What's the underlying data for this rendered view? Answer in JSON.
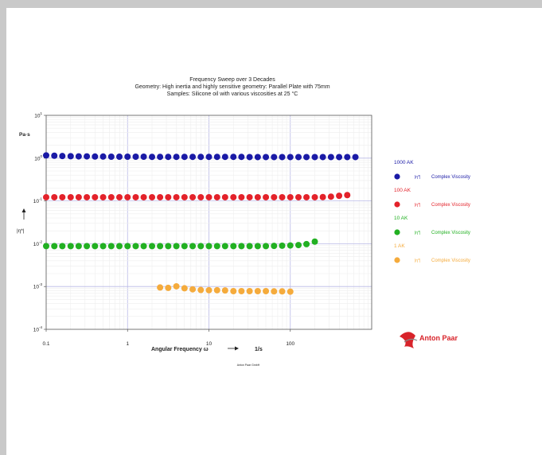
{
  "chart_data": {
    "type": "scatter",
    "title": "Frequency Sweep over 3 Decades",
    "subtitle_lines": [
      "Geometry: High inertia and highly sensitive geometry: Parallel Plate with 75mm",
      "Samples: Silicone oil with various viscosities at 25 °C"
    ],
    "xlabel": "Angular Frequency ω",
    "x_unit": "1/s",
    "ylabel": "|η*|",
    "y_unit": "Pa·s",
    "xscale": "log",
    "yscale": "log",
    "xlim": [
      0.1,
      1000
    ],
    "ylim": [
      0.0001,
      10
    ],
    "x_ticks": [
      "0.1",
      "1",
      "10",
      "100"
    ],
    "y_ticks": [
      {
        "base": "10",
        "exp": "1",
        "value": 10
      },
      {
        "base": "10",
        "exp": "0",
        "value": 1
      },
      {
        "base": "10",
        "exp": "-1",
        "value": 0.1
      },
      {
        "base": "10",
        "exp": "-2",
        "value": 0.01
      },
      {
        "base": "10",
        "exp": "-3",
        "value": 0.001
      },
      {
        "base": "10",
        "exp": "-4",
        "value": 0.0001
      }
    ],
    "grid": true,
    "legend_position": "right",
    "series": [
      {
        "group": "1000 AK",
        "name": "Complex Viscosity",
        "symbol": "|η*|",
        "color": "#1a1aa6",
        "points": [
          [
            0.1,
            1.16
          ],
          [
            0.126,
            1.14
          ],
          [
            0.158,
            1.12
          ],
          [
            0.2,
            1.11
          ],
          [
            0.251,
            1.1
          ],
          [
            0.316,
            1.1
          ],
          [
            0.398,
            1.09
          ],
          [
            0.501,
            1.09
          ],
          [
            0.631,
            1.08
          ],
          [
            0.794,
            1.08
          ],
          [
            1,
            1.08
          ],
          [
            1.26,
            1.08
          ],
          [
            1.58,
            1.08
          ],
          [
            2,
            1.07
          ],
          [
            2.51,
            1.07
          ],
          [
            3.16,
            1.07
          ],
          [
            3.98,
            1.07
          ],
          [
            5.01,
            1.07
          ],
          [
            6.31,
            1.07
          ],
          [
            7.94,
            1.07
          ],
          [
            10,
            1.07
          ],
          [
            12.6,
            1.07
          ],
          [
            15.8,
            1.07
          ],
          [
            20,
            1.07
          ],
          [
            25.1,
            1.07
          ],
          [
            31.6,
            1.06
          ],
          [
            39.8,
            1.06
          ],
          [
            50.1,
            1.06
          ],
          [
            63.1,
            1.06
          ],
          [
            79.4,
            1.06
          ],
          [
            100,
            1.06
          ],
          [
            126,
            1.06
          ],
          [
            158,
            1.06
          ],
          [
            200,
            1.06
          ],
          [
            251,
            1.06
          ],
          [
            316,
            1.06
          ],
          [
            398,
            1.06
          ],
          [
            501,
            1.06
          ],
          [
            631,
            1.06
          ]
        ]
      },
      {
        "group": "100 AK",
        "name": "Complex Viscosity",
        "symbol": "|η*|",
        "color": "#e3222a",
        "points": [
          [
            0.1,
            0.122
          ],
          [
            0.126,
            0.122
          ],
          [
            0.158,
            0.122
          ],
          [
            0.2,
            0.122
          ],
          [
            0.251,
            0.122
          ],
          [
            0.316,
            0.122
          ],
          [
            0.398,
            0.122
          ],
          [
            0.501,
            0.122
          ],
          [
            0.631,
            0.122
          ],
          [
            0.794,
            0.122
          ],
          [
            1,
            0.122
          ],
          [
            1.26,
            0.122
          ],
          [
            1.58,
            0.122
          ],
          [
            2,
            0.122
          ],
          [
            2.51,
            0.122
          ],
          [
            3.16,
            0.122
          ],
          [
            3.98,
            0.122
          ],
          [
            5.01,
            0.122
          ],
          [
            6.31,
            0.122
          ],
          [
            7.94,
            0.122
          ],
          [
            10,
            0.122
          ],
          [
            12.6,
            0.122
          ],
          [
            15.8,
            0.122
          ],
          [
            20,
            0.122
          ],
          [
            25.1,
            0.122
          ],
          [
            31.6,
            0.122
          ],
          [
            39.8,
            0.122
          ],
          [
            50.1,
            0.122
          ],
          [
            63.1,
            0.122
          ],
          [
            79.4,
            0.122
          ],
          [
            100,
            0.122
          ],
          [
            126,
            0.122
          ],
          [
            158,
            0.122
          ],
          [
            200,
            0.122
          ],
          [
            251,
            0.123
          ],
          [
            316,
            0.126
          ],
          [
            398,
            0.132
          ],
          [
            501,
            0.137
          ]
        ]
      },
      {
        "group": "10 AK",
        "name": "Complex Viscosity",
        "symbol": "|η*|",
        "color": "#22b022",
        "points": [
          [
            0.1,
            0.0088
          ],
          [
            0.126,
            0.0088
          ],
          [
            0.158,
            0.0088
          ],
          [
            0.2,
            0.0088
          ],
          [
            0.251,
            0.0088
          ],
          [
            0.316,
            0.0088
          ],
          [
            0.398,
            0.0088
          ],
          [
            0.501,
            0.0088
          ],
          [
            0.631,
            0.0088
          ],
          [
            0.794,
            0.0088
          ],
          [
            1,
            0.0088
          ],
          [
            1.26,
            0.0088
          ],
          [
            1.58,
            0.0088
          ],
          [
            2,
            0.0088
          ],
          [
            2.51,
            0.0088
          ],
          [
            3.16,
            0.0088
          ],
          [
            3.98,
            0.0088
          ],
          [
            5.01,
            0.0088
          ],
          [
            6.31,
            0.0088
          ],
          [
            7.94,
            0.0088
          ],
          [
            10,
            0.0088
          ],
          [
            12.6,
            0.0088
          ],
          [
            15.8,
            0.0088
          ],
          [
            20,
            0.0088
          ],
          [
            25.1,
            0.0088
          ],
          [
            31.6,
            0.0088
          ],
          [
            39.8,
            0.0088
          ],
          [
            50.1,
            0.0088
          ],
          [
            63.1,
            0.0089
          ],
          [
            79.4,
            0.009
          ],
          [
            100,
            0.0091
          ],
          [
            126,
            0.0093
          ],
          [
            158,
            0.0098
          ],
          [
            200,
            0.0112
          ]
        ]
      },
      {
        "group": "1 AK",
        "name": "Complex Viscosity",
        "symbol": "|η*|",
        "color": "#f5ab3c",
        "points": [
          [
            2.51,
            0.00095
          ],
          [
            3.16,
            0.00093
          ],
          [
            3.98,
            0.00101
          ],
          [
            5.01,
            0.00091
          ],
          [
            6.31,
            0.00086
          ],
          [
            7.94,
            0.00083
          ],
          [
            10,
            0.00082
          ],
          [
            12.6,
            0.00082
          ],
          [
            15.8,
            0.00081
          ],
          [
            20,
            0.00078
          ],
          [
            25.1,
            0.00078
          ],
          [
            31.6,
            0.00078
          ],
          [
            39.8,
            0.00078
          ],
          [
            50.1,
            0.00078
          ],
          [
            63.1,
            0.00077
          ],
          [
            79.4,
            0.00077
          ],
          [
            100,
            0.00076
          ]
        ]
      }
    ]
  },
  "footer_small": "Anton Paar GmbH",
  "logo": {
    "text": "Anton Paar",
    "color": "#d8232a"
  }
}
